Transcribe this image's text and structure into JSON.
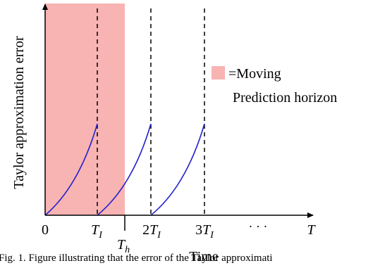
{
  "figure": {
    "ylabel": "Taylor approximation error",
    "xlabel": "Time",
    "ticks": {
      "zero": "0",
      "t1": "T",
      "t1_sub": "I",
      "th": "T",
      "th_sub": "h",
      "t2_coef": "2",
      "t2": "T",
      "t2_sub": "I",
      "t3_coef": "3",
      "t3": "T",
      "t3_sub": "I",
      "dots": "· · ·",
      "end": "T"
    },
    "legend": {
      "line1": "=Moving",
      "line2": "Prediction horizon"
    },
    "colors": {
      "horizon": "#f8b3b3",
      "curve": "#2222cc",
      "axis": "#000000"
    }
  },
  "caption": {
    "text": "Fig. 1.  Figure illustrating that the error of the Taylor approximati"
  }
}
